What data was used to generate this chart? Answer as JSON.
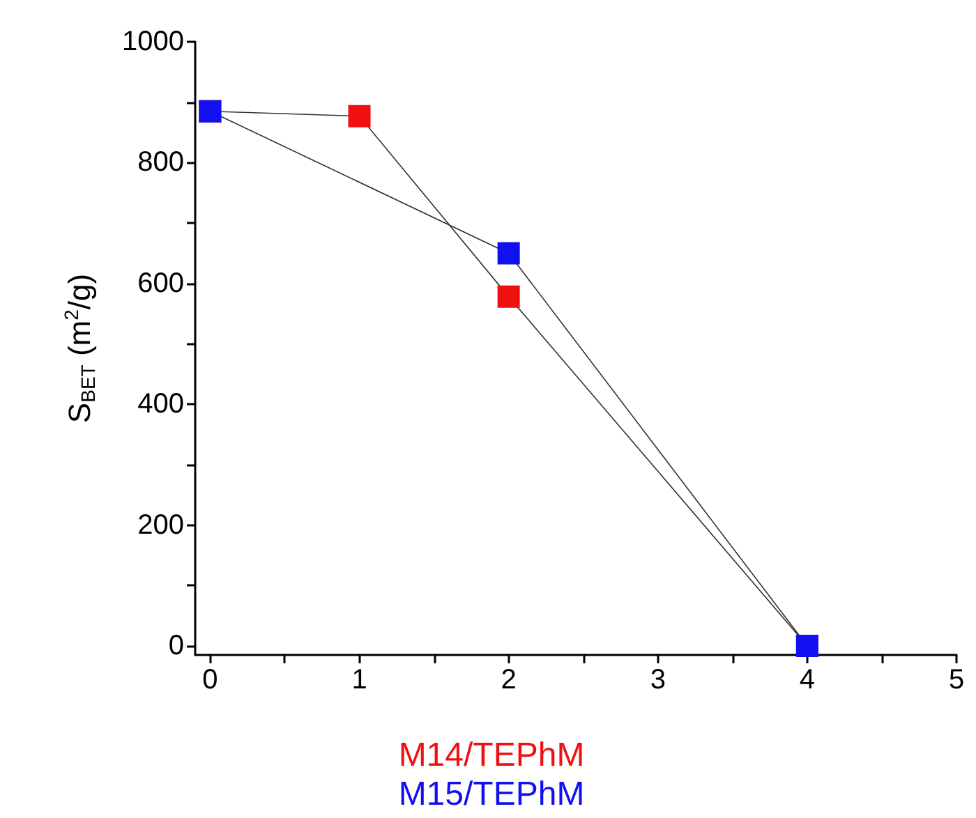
{
  "chart_data": {
    "type": "line",
    "xlabel": null,
    "ylabel": "S$_{BET}$ (m$^{2}$/g)",
    "series": [
      {
        "name": "M14/TEPhM",
        "color": "#333333",
        "colors": [
          "#f01010",
          "#f01010",
          "#f01010",
          "#f01010"
        ],
        "x": [
          0,
          1,
          2,
          4
        ],
        "values": [
          885,
          877,
          578,
          0
        ]
      },
      {
        "name": "M15/TEPhM",
        "color": "#333333",
        "colors": [
          "#1010f0",
          "#1010f0",
          "#1010f0"
        ],
        "x": [
          0,
          2,
          4
        ],
        "values": [
          885,
          650,
          0
        ]
      }
    ],
    "xlim": [
      -0.1,
      5
    ],
    "xticks": [
      0,
      {
        "value": 0.5,
        "label": null
      },
      1,
      {
        "value": 1.5,
        "label": null
      },
      2,
      {
        "value": 2.5,
        "label": null
      },
      3,
      {
        "value": 3.5,
        "label": null
      },
      4,
      {
        "value": 4.5,
        "label": null
      },
      5
    ],
    "ylim": [
      -15,
      1000
    ],
    "yticks": [
      0,
      {
        "value": 100,
        "label": null
      },
      200,
      {
        "value": 300,
        "label": null
      },
      400,
      {
        "value": 500,
        "label": null
      },
      600,
      {
        "value": 700,
        "label": null
      },
      800,
      {
        "value": 900,
        "label": null
      },
      1000
    ],
    "marker": "square",
    "line_style": "solid",
    "grid": false,
    "legend": "bottom"
  }
}
